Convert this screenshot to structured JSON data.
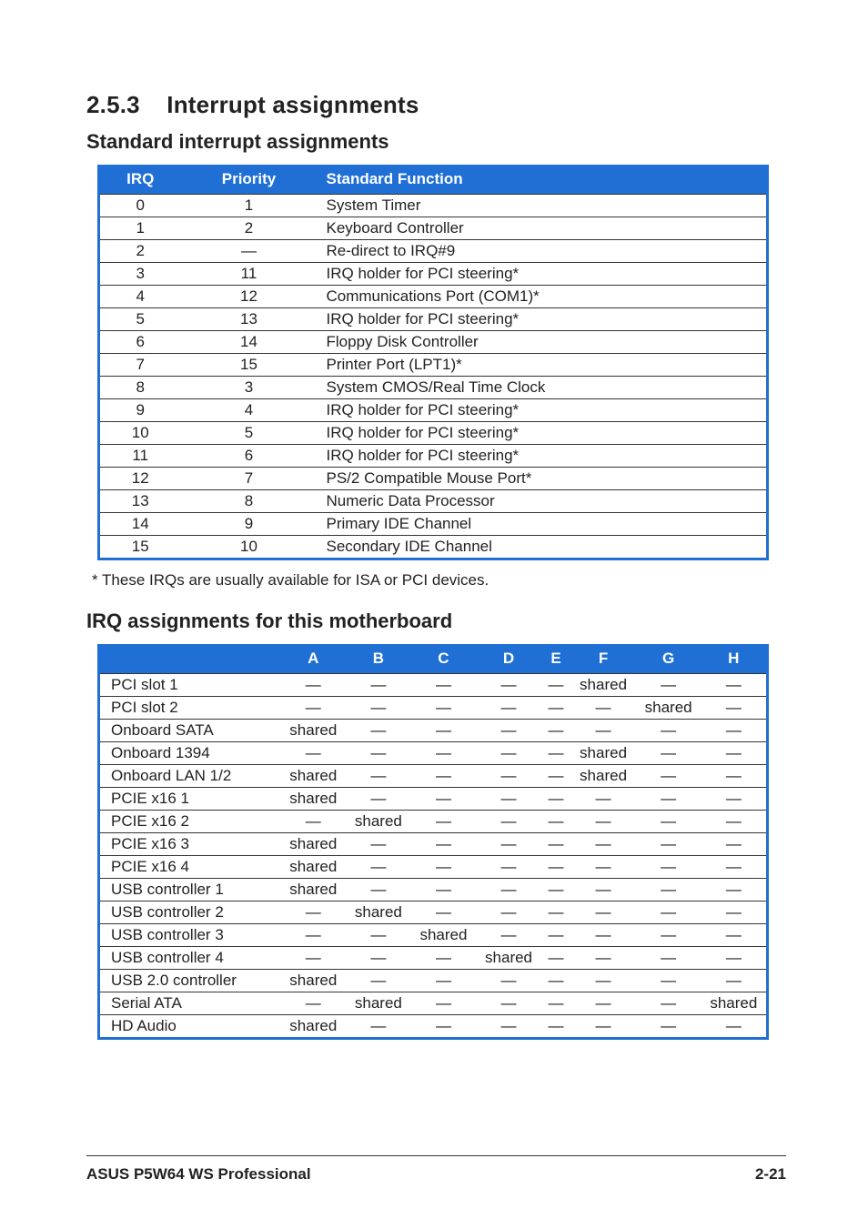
{
  "colors": {
    "header_bg": "#1f6fd4",
    "header_text": "#ffffff",
    "table_border": "#1f6fd4",
    "row_border": "#333333",
    "body_text": "#222222"
  },
  "section": {
    "number": "2.5.3",
    "title": "Interrupt assignments",
    "sub1": "Standard interrupt assignments",
    "sub2": "IRQ assignments for this motherboard"
  },
  "irq_table": {
    "headers": [
      "IRQ",
      "Priority",
      "Standard Function"
    ],
    "rows": [
      [
        "0",
        "1",
        "System Timer"
      ],
      [
        "1",
        "2",
        "Keyboard Controller"
      ],
      [
        "2",
        "—",
        "Re-direct to IRQ#9"
      ],
      [
        "3",
        "11",
        "IRQ holder for PCI steering*"
      ],
      [
        "4",
        "12",
        "Communications Port (COM1)*"
      ],
      [
        "5",
        "13",
        "IRQ holder for PCI steering*"
      ],
      [
        "6",
        "14",
        "Floppy Disk Controller"
      ],
      [
        "7",
        "15",
        "Printer Port (LPT1)*"
      ],
      [
        "8",
        "3",
        "System CMOS/Real Time Clock"
      ],
      [
        "9",
        "4",
        "IRQ holder for PCI steering*"
      ],
      [
        "10",
        "5",
        "IRQ holder for PCI steering*"
      ],
      [
        "11",
        "6",
        "IRQ holder for PCI steering*"
      ],
      [
        "12",
        "7",
        "PS/2 Compatible Mouse Port*"
      ],
      [
        "13",
        "8",
        "Numeric Data Processor"
      ],
      [
        "14",
        "9",
        "Primary IDE Channel"
      ],
      [
        "15",
        "10",
        "Secondary IDE Channel"
      ]
    ]
  },
  "note": "* These IRQs are usually available for ISA or PCI devices.",
  "assign_table": {
    "headers": [
      "",
      "A",
      "B",
      "C",
      "D",
      "E",
      "F",
      "G",
      "H"
    ],
    "rows": [
      [
        "PCI slot 1",
        "—",
        "—",
        "—",
        "—",
        "—",
        "shared",
        "—",
        "—"
      ],
      [
        "PCI slot 2",
        "—",
        "—",
        "—",
        "—",
        "—",
        "—",
        "shared",
        "—"
      ],
      [
        "Onboard SATA",
        "shared",
        "—",
        "—",
        "—",
        "—",
        "—",
        "—",
        "—"
      ],
      [
        "Onboard 1394",
        "—",
        "—",
        "—",
        "—",
        "—",
        "shared",
        "—",
        "—"
      ],
      [
        "Onboard LAN 1/2",
        "shared",
        "—",
        "—",
        "—",
        "—",
        "shared",
        "—",
        "—"
      ],
      [
        "PCIE x16 1",
        "shared",
        "—",
        "—",
        "—",
        "—",
        "—",
        "—",
        "—"
      ],
      [
        "PCIE x16 2",
        "—",
        "shared",
        "—",
        "—",
        "—",
        "—",
        "—",
        "—"
      ],
      [
        "PCIE x16 3",
        "shared",
        "—",
        "—",
        "—",
        "—",
        "—",
        "—",
        "—"
      ],
      [
        "PCIE x16 4",
        "shared",
        "—",
        "—",
        "—",
        "—",
        "—",
        "—",
        "—"
      ],
      [
        "USB controller 1",
        "shared",
        "—",
        "—",
        "—",
        "—",
        "—",
        "—",
        "—"
      ],
      [
        "USB controller 2",
        "—",
        "shared",
        "—",
        "—",
        "—",
        "—",
        "—",
        "—"
      ],
      [
        "USB controller 3",
        "—",
        "—",
        "shared",
        "—",
        "—",
        "—",
        "—",
        "—"
      ],
      [
        "USB controller 4",
        "—",
        "—",
        "—",
        "shared",
        "—",
        "—",
        "—",
        "—"
      ],
      [
        "USB 2.0 controller",
        "shared",
        "—",
        "—",
        "—",
        "—",
        "—",
        "—",
        "—"
      ],
      [
        "Serial ATA",
        "—",
        "shared",
        "—",
        "—",
        "—",
        "—",
        "—",
        "shared"
      ],
      [
        "HD Audio",
        "shared",
        "—",
        "—",
        "—",
        "—",
        "—",
        "—",
        "—"
      ]
    ]
  },
  "footer": {
    "left": "ASUS P5W64 WS Professional",
    "right": "2-21"
  }
}
